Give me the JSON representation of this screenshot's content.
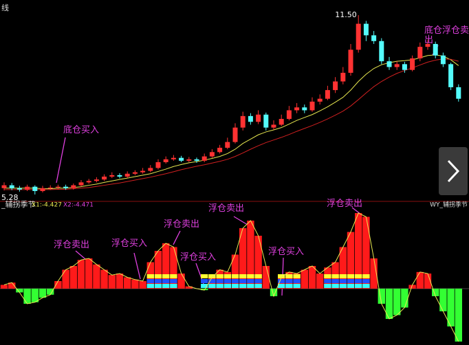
{
  "chart_data": [
    {
      "type": "candlestick",
      "title": "线",
      "up_color": "#ff3232",
      "down_color": "#54fcfc",
      "high_label": {
        "value": 11.5,
        "label": "11.50"
      },
      "low_label": 5.28,
      "annotations": [
        "底仓买入",
        "底仓浮仓卖出"
      ],
      "open": [
        5.5,
        5.6,
        5.5,
        5.45,
        5.55,
        5.4,
        5.5,
        5.52,
        5.55,
        5.5,
        5.6,
        5.7,
        5.75,
        5.8,
        5.9,
        5.95,
        5.9,
        6.0,
        6.05,
        6.1,
        6.2,
        6.4,
        6.5,
        6.55,
        6.45,
        6.5,
        6.45,
        6.6,
        6.75,
        6.9,
        7.1,
        7.6,
        8.0,
        7.8,
        8.05,
        7.6,
        7.7,
        7.9,
        8.2,
        8.3,
        8.2,
        8.5,
        8.6,
        8.9,
        9.2,
        9.5,
        10.3,
        11.2,
        10.8,
        10.6,
        9.9,
        9.7,
        9.8,
        9.6,
        10.0,
        10.4,
        10.5,
        10.1,
        9.8,
        9.0
      ],
      "high": [
        5.7,
        5.68,
        5.58,
        5.62,
        5.6,
        5.58,
        5.6,
        5.62,
        5.62,
        5.66,
        5.78,
        5.82,
        5.88,
        5.98,
        6.05,
        6.02,
        6.08,
        6.12,
        6.2,
        6.3,
        6.5,
        6.6,
        6.65,
        6.62,
        6.58,
        6.56,
        6.7,
        6.85,
        7.0,
        7.25,
        7.75,
        8.15,
        8.1,
        8.2,
        8.12,
        7.85,
        8.05,
        8.35,
        8.45,
        8.4,
        8.65,
        8.75,
        9.05,
        9.35,
        9.7,
        10.5,
        11.5,
        11.3,
        10.95,
        10.7,
        10.05,
        9.9,
        9.88,
        10.1,
        10.55,
        10.65,
        10.58,
        10.2,
        9.85,
        9.1
      ],
      "low": [
        5.42,
        5.43,
        5.38,
        5.4,
        5.28,
        5.35,
        5.44,
        5.46,
        5.44,
        5.45,
        5.55,
        5.65,
        5.7,
        5.75,
        5.85,
        5.84,
        5.85,
        5.95,
        6.0,
        6.05,
        6.15,
        6.35,
        6.45,
        6.4,
        6.4,
        6.38,
        6.4,
        6.55,
        6.7,
        6.85,
        7.05,
        7.5,
        7.7,
        7.72,
        7.5,
        7.52,
        7.65,
        7.85,
        8.1,
        8.1,
        8.15,
        8.4,
        8.55,
        8.8,
        9.1,
        9.4,
        10.2,
        10.6,
        10.5,
        9.8,
        9.6,
        9.6,
        9.5,
        9.55,
        9.9,
        10.3,
        10.0,
        9.7,
        8.9,
        8.5
      ],
      "close": [
        5.6,
        5.5,
        5.45,
        5.55,
        5.4,
        5.5,
        5.52,
        5.55,
        5.5,
        5.6,
        5.7,
        5.75,
        5.8,
        5.9,
        5.95,
        5.9,
        6.0,
        6.05,
        6.1,
        6.2,
        6.4,
        6.5,
        6.55,
        6.45,
        6.5,
        6.45,
        6.6,
        6.75,
        6.9,
        7.1,
        7.6,
        8.0,
        7.8,
        8.05,
        7.6,
        7.7,
        7.9,
        8.2,
        8.3,
        8.2,
        8.5,
        8.6,
        8.9,
        9.2,
        9.5,
        10.3,
        11.2,
        10.8,
        10.6,
        9.9,
        9.7,
        9.8,
        9.6,
        10.0,
        10.4,
        10.5,
        10.1,
        9.8,
        9.0,
        8.6
      ],
      "series": [
        {
          "color": "#e8e850",
          "values": [
            5.5,
            5.5,
            5.5,
            5.5,
            5.5,
            5.48,
            5.48,
            5.5,
            5.5,
            5.52,
            5.55,
            5.6,
            5.64,
            5.7,
            5.75,
            5.8,
            5.85,
            5.9,
            5.95,
            6.0,
            6.08,
            6.16,
            6.25,
            6.32,
            6.38,
            6.42,
            6.47,
            6.53,
            6.6,
            6.7,
            6.85,
            7.05,
            7.2,
            7.35,
            7.45,
            7.52,
            7.6,
            7.72,
            7.85,
            7.95,
            8.05,
            8.18,
            8.32,
            8.48,
            8.65,
            8.9,
            9.2,
            9.45,
            9.65,
            9.78,
            9.85,
            9.9,
            9.92,
            9.95,
            10.02,
            10.1,
            10.12,
            10.08,
            9.95,
            9.75
          ]
        },
        {
          "color": "#d02020",
          "values": [
            5.45,
            5.45,
            5.45,
            5.45,
            5.45,
            5.45,
            5.45,
            5.46,
            5.46,
            5.48,
            5.5,
            5.52,
            5.56,
            5.6,
            5.64,
            5.68,
            5.73,
            5.78,
            5.83,
            5.88,
            5.94,
            6.0,
            6.07,
            6.14,
            6.2,
            6.26,
            6.31,
            6.37,
            6.43,
            6.5,
            6.6,
            6.72,
            6.85,
            6.97,
            7.08,
            7.17,
            7.26,
            7.36,
            7.47,
            7.57,
            7.67,
            7.78,
            7.9,
            8.03,
            8.17,
            8.35,
            8.57,
            8.8,
            9.02,
            9.2,
            9.35,
            9.48,
            9.58,
            9.67,
            9.77,
            9.87,
            9.94,
            9.98,
            9.97,
            9.9
          ]
        }
      ]
    },
    {
      "type": "bar",
      "title": "_辅拐季节",
      "right_title": "WY_辅拐季节",
      "legend": [
        "X1:-4.427",
        "X2:-4.471"
      ],
      "pos_color": "#ff1a1a",
      "neg_color": "#33ff33",
      "line_color": "#e8e850",
      "annotations": [
        "浮仓卖出",
        "浮仓买入",
        "浮仓卖出",
        "浮仓买入",
        "浮仓卖出",
        "浮仓买入",
        "浮仓卖出"
      ],
      "values": [
        5,
        8,
        -5,
        -20,
        -18,
        -12,
        -8,
        10,
        25,
        30,
        38,
        40,
        32,
        25,
        18,
        20,
        15,
        12,
        10,
        35,
        50,
        60,
        55,
        20,
        3,
        0,
        -2,
        15,
        25,
        22,
        45,
        80,
        90,
        70,
        30,
        -10,
        15,
        22,
        20,
        25,
        30,
        20,
        28,
        35,
        55,
        75,
        100,
        95,
        40,
        -20,
        -40,
        -35,
        -25,
        5,
        22,
        20,
        -10,
        -30,
        -50,
        -70
      ],
      "signal": [
        0,
        0,
        0,
        0,
        0,
        0,
        0,
        0,
        0,
        0,
        0,
        0,
        0,
        0,
        0,
        0,
        0,
        0,
        0,
        1,
        1,
        1,
        1,
        0,
        0,
        0,
        1,
        1,
        1,
        1,
        1,
        1,
        1,
        1,
        0,
        0,
        1,
        1,
        1,
        0,
        0,
        0,
        1,
        1,
        1,
        1,
        1,
        1,
        0,
        0,
        0,
        0,
        0,
        0,
        0,
        0,
        0,
        0,
        0,
        0
      ]
    }
  ]
}
